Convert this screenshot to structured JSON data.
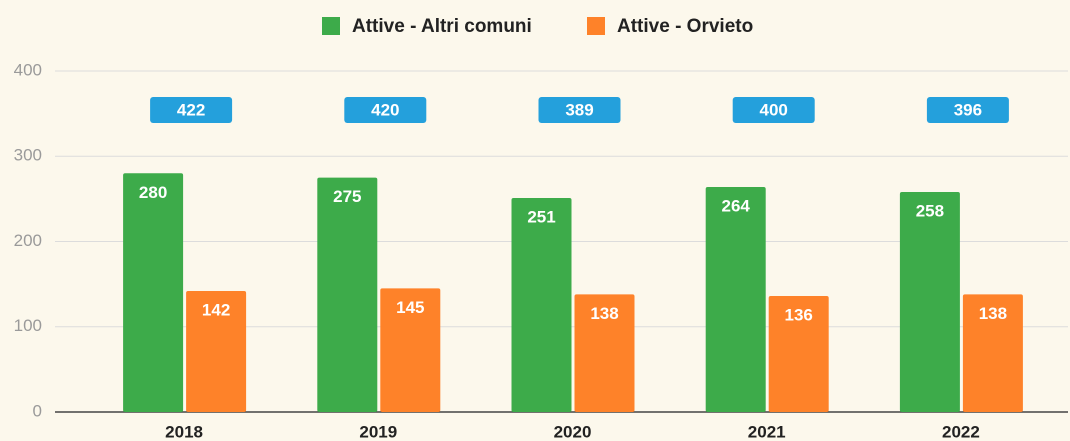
{
  "chart_data": {
    "type": "bar",
    "categories": [
      "2018",
      "2019",
      "2020",
      "2021",
      "2022"
    ],
    "series": [
      {
        "name": "Attive - Altri comuni",
        "color": "#3dab4a",
        "values": [
          280,
          275,
          251,
          264,
          258
        ]
      },
      {
        "name": "Attive - Orvieto",
        "color": "#fe8229",
        "values": [
          142,
          145,
          138,
          136,
          138
        ]
      }
    ],
    "totals": [
      422,
      420,
      389,
      400,
      396
    ],
    "totals_color": "#24a0dc",
    "ylim": [
      0,
      400
    ],
    "yticks": [
      0,
      100,
      200,
      300,
      400
    ],
    "grid": true,
    "legend": "top"
  }
}
